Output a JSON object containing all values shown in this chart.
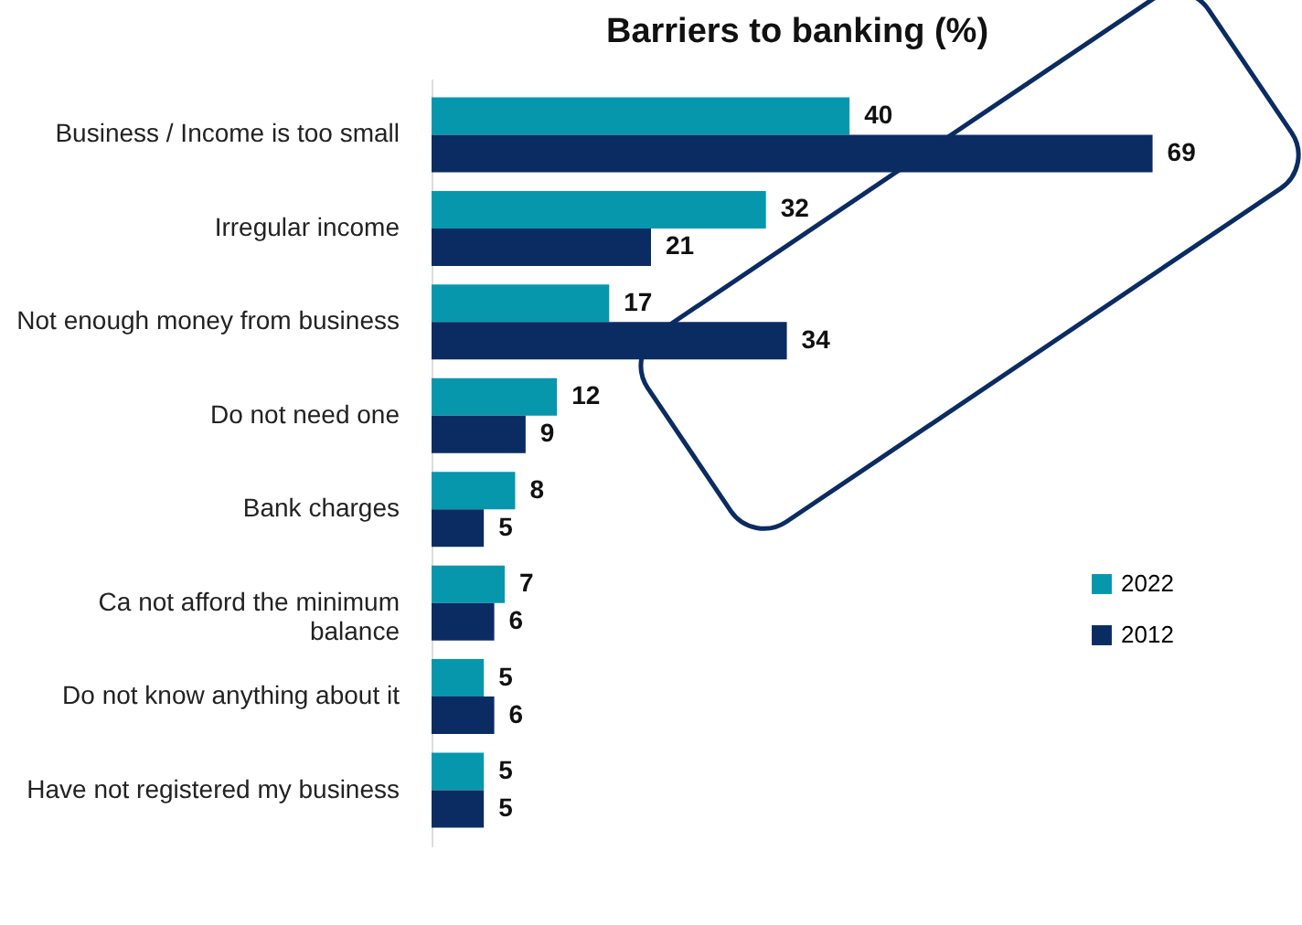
{
  "chart_data": {
    "type": "bar",
    "orientation": "horizontal",
    "title": "Barriers to banking (%)",
    "categories": [
      "Business / Income is too small",
      "Irregular income",
      "Not enough money from business",
      "Do not need one",
      "Bank charges",
      "Ca not afford the minimum balance",
      "Do not know anything about it",
      "Have not registered my business"
    ],
    "series": [
      {
        "name": "2022",
        "color": "#0697ad",
        "values": [
          40,
          32,
          17,
          12,
          8,
          7,
          5,
          5
        ]
      },
      {
        "name": "2012",
        "color": "#0b2c63",
        "values": [
          69,
          21,
          34,
          9,
          5,
          6,
          6,
          5
        ]
      }
    ],
    "data_labels": true,
    "legend": "right",
    "grid": false
  }
}
